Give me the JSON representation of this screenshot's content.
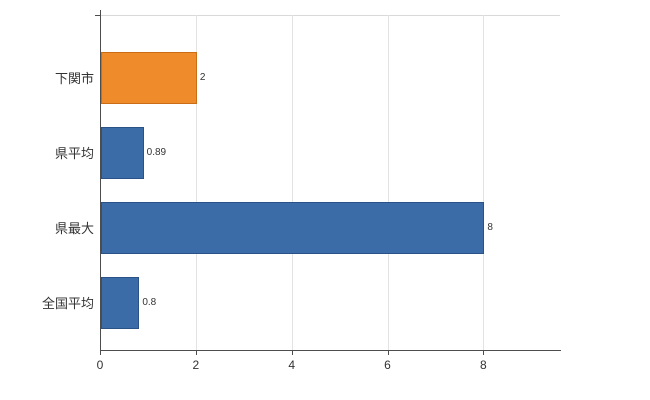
{
  "chart_data": {
    "type": "bar",
    "orientation": "horizontal",
    "title": "",
    "xlabel": "",
    "ylabel": "",
    "categories": [
      "下関市",
      "県平均",
      "県最大",
      "全国平均"
    ],
    "values": [
      2,
      0.89,
      8,
      0.8
    ],
    "value_labels": [
      "2",
      "0.89",
      "8",
      "0.8"
    ],
    "bar_colors": [
      "#ef8b2b",
      "#3c6ca8",
      "#3c6ca8",
      "#3c6ca8"
    ],
    "bar_border_colors": [
      "#c96e16",
      "#2a5286",
      "#2a5286",
      "#2a5286"
    ],
    "xlim": [
      0,
      9.6
    ],
    "x_ticks": [
      0,
      2,
      4,
      6,
      8
    ],
    "x_tick_labels": [
      "0",
      "2",
      "4",
      "6",
      "8"
    ],
    "grid": true,
    "legend": false,
    "background_color": "#ffffff",
    "axis_color": "#4d4d4d",
    "gridline_color": "#e3e3e3"
  }
}
